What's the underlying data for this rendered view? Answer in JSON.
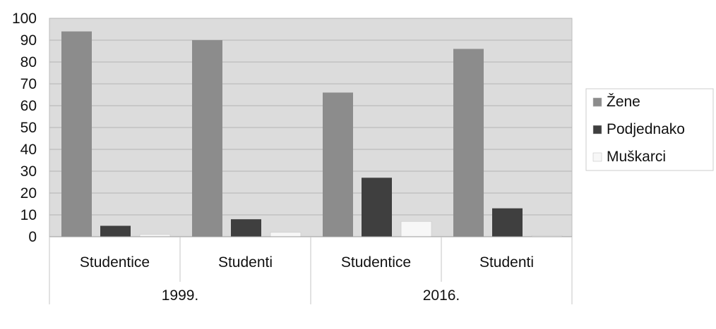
{
  "chart_data": {
    "type": "bar",
    "title": "",
    "xlabel": "",
    "ylabel": "",
    "ylim": [
      0,
      100
    ],
    "yticks": [
      0,
      10,
      20,
      30,
      40,
      50,
      60,
      70,
      80,
      90,
      100
    ],
    "grid": true,
    "legend_position": "right",
    "groups": [
      {
        "label": "1999.",
        "categories": [
          "Studentice",
          "Studenti"
        ]
      },
      {
        "label": "2016.",
        "categories": [
          "Studentice",
          "Studenti"
        ]
      }
    ],
    "categories": [
      "Studentice",
      "Studenti",
      "Studentice",
      "Studenti"
    ],
    "series": [
      {
        "name": "Žene",
        "color": "#8c8c8c",
        "values": [
          94,
          90,
          66,
          86
        ]
      },
      {
        "name": "Podjednako",
        "color": "#3f3f3f",
        "values": [
          5,
          8,
          27,
          13
        ]
      },
      {
        "name": "Muškarci",
        "color": "#f7f7f7",
        "values": [
          1,
          2,
          7,
          0.5
        ]
      }
    ],
    "plot_background": "#dcdcdc"
  }
}
